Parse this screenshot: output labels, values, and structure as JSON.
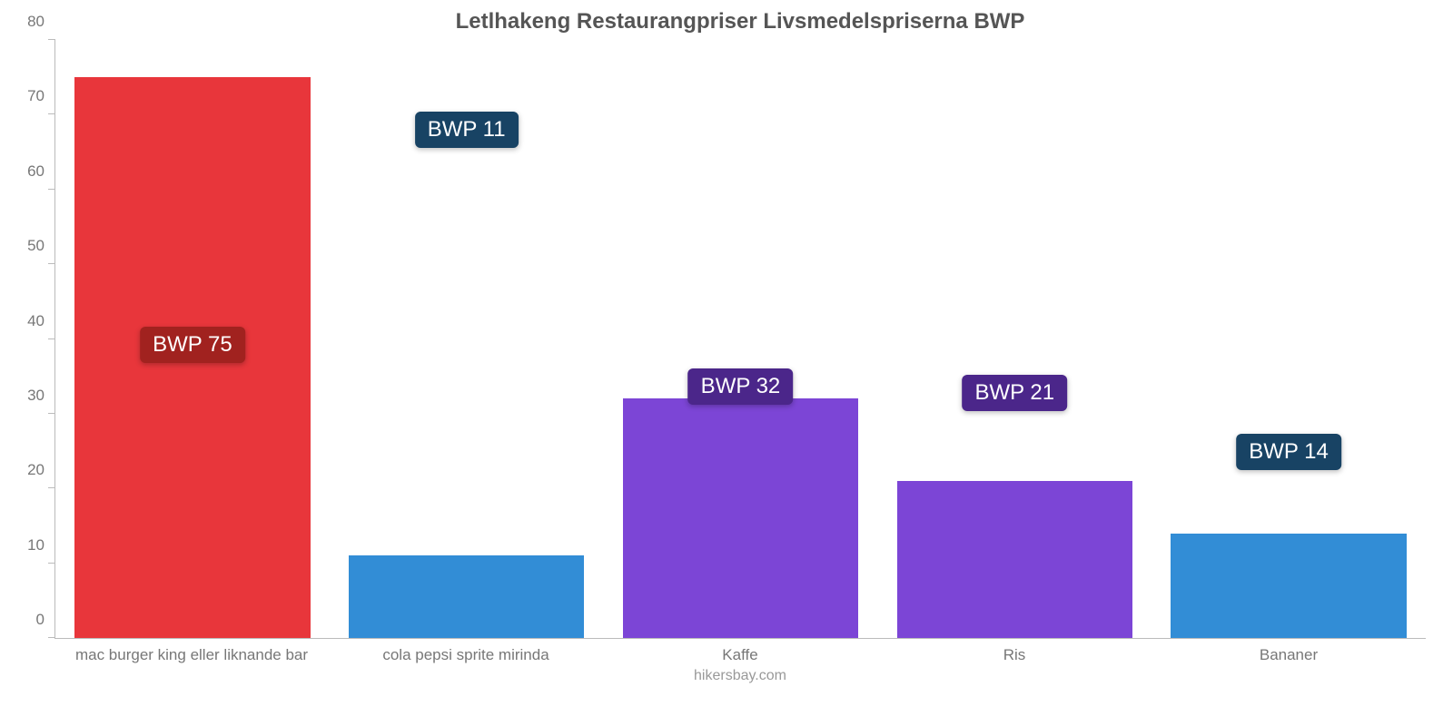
{
  "chart": {
    "type": "bar",
    "title": "Letlhakeng Restaurangpriser Livsmedelspriserna BWP",
    "title_fontsize": 24,
    "title_color": "#555555",
    "background_color": "#ffffff",
    "axis_color": "#bbbbbb",
    "tick_label_color": "#777777",
    "tick_label_fontsize": 17,
    "x_label_fontsize": 17,
    "ylim": [
      0,
      80
    ],
    "ytick_step": 10,
    "yticks": [
      0,
      10,
      20,
      30,
      40,
      50,
      60,
      70,
      80
    ],
    "bar_width_pct": 86,
    "categories": [
      "mac burger king eller liknande bar",
      "cola pepsi sprite mirinda",
      "Kaffe",
      "Ris",
      "Bananer"
    ],
    "values": [
      75,
      11,
      32,
      21,
      14
    ],
    "value_labels": [
      "BWP 75",
      "BWP 11",
      "BWP 32",
      "BWP 21",
      "BWP 14"
    ],
    "bar_colors": [
      "#e8363b",
      "#328dd6",
      "#7c45d6",
      "#7c45d6",
      "#328dd6"
    ],
    "badge_colors": [
      "#a1221f",
      "#184364",
      "#4b268a",
      "#4b268a",
      "#184364"
    ],
    "badge_text_color": "#ffffff",
    "badge_fontsize": 24,
    "badge_positions_pct": [
      46,
      82,
      39,
      38,
      28
    ],
    "footer": "hikersbay.com",
    "footer_color": "#999999",
    "footer_fontsize": 16
  }
}
